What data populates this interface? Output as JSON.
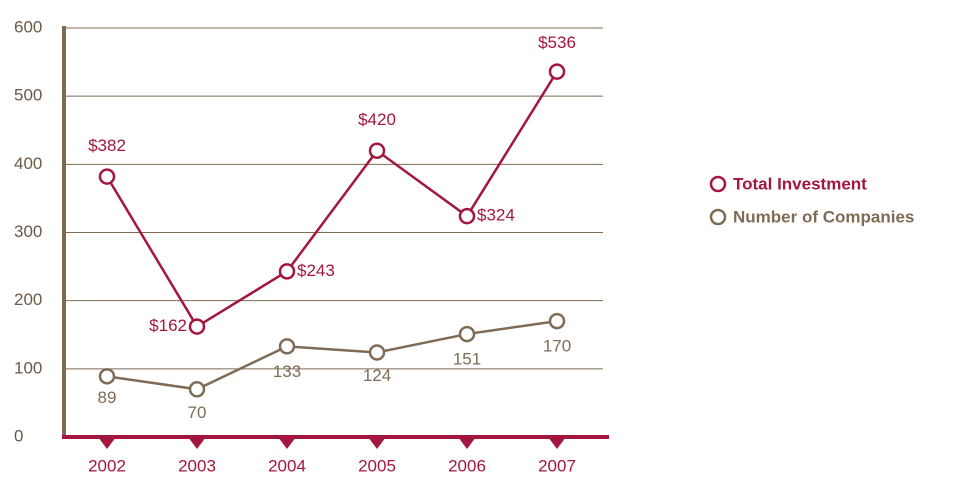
{
  "chart_data": {
    "type": "line",
    "categories": [
      "2002",
      "2003",
      "2004",
      "2005",
      "2006",
      "2007"
    ],
    "series": [
      {
        "name": "Total Investment",
        "color": "#a3163f",
        "values": [
          382,
          162,
          243,
          420,
          324,
          536
        ],
        "value_labels": [
          "$382",
          "$162",
          "$243",
          "$420",
          "$324",
          "$536"
        ]
      },
      {
        "name": "Number of Companies",
        "color": "#7f6b55",
        "values": [
          89,
          70,
          133,
          124,
          151,
          170
        ]
      }
    ],
    "ylim": [
      0,
      600
    ],
    "yticks": [
      0,
      100,
      200,
      300,
      400,
      500,
      600
    ],
    "grid": true,
    "legend": "right"
  }
}
